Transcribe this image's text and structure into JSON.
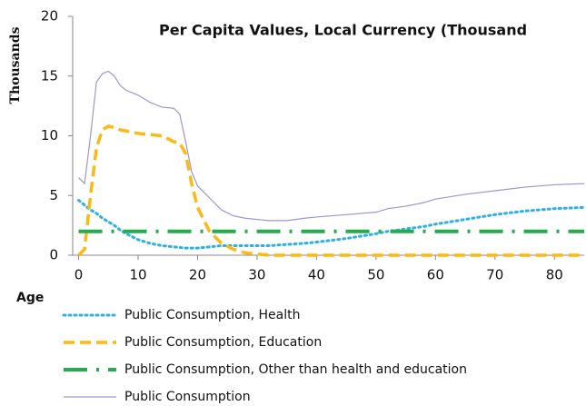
{
  "chart_data": {
    "type": "line",
    "title": "Per Capita Values, Local Currency (Thousand",
    "y_label": "Thousands",
    "x_label": "Age",
    "x": [
      0,
      1,
      2,
      3,
      4,
      5,
      6,
      7,
      8,
      10,
      12,
      14,
      16,
      17,
      18,
      19,
      20,
      22,
      24,
      26,
      28,
      30,
      32,
      35,
      38,
      40,
      45,
      50,
      52,
      55,
      58,
      60,
      65,
      70,
      75,
      80,
      85
    ],
    "xlim": [
      -1,
      85
    ],
    "xticks": [
      0,
      10,
      20,
      30,
      40,
      50,
      60,
      70,
      80
    ],
    "ylim": [
      0,
      20
    ],
    "yticks": [
      0,
      5,
      10,
      15,
      20
    ],
    "series": [
      {
        "name": "Public Consumption, Health",
        "color": "#2eb0e4",
        "style": "dotted",
        "values": [
          4.6,
          4.2,
          3.8,
          3.5,
          3.1,
          2.8,
          2.5,
          2.1,
          1.8,
          1.3,
          1.0,
          0.8,
          0.7,
          0.65,
          0.6,
          0.6,
          0.6,
          0.7,
          0.8,
          0.8,
          0.8,
          0.8,
          0.8,
          0.9,
          1.0,
          1.1,
          1.4,
          1.8,
          2.0,
          2.2,
          2.4,
          2.6,
          3.0,
          3.4,
          3.7,
          3.9,
          4.0
        ]
      },
      {
        "name": "Public Consumption, Education",
        "color": "#fdb913",
        "style": "dashed",
        "values": [
          0,
          0.5,
          5,
          9,
          10.5,
          10.8,
          10.7,
          10.5,
          10.4,
          10.2,
          10.1,
          10,
          9.5,
          9.4,
          8.5,
          6,
          4,
          2,
          1,
          0.5,
          0.2,
          0.1,
          0,
          0,
          0,
          0,
          0,
          0,
          0,
          0,
          0,
          0,
          0,
          0,
          0,
          0,
          0
        ]
      },
      {
        "name": "Public Consumption, Other than health and education",
        "color": "#1fae4b",
        "style": "dashdot",
        "values": [
          2,
          2,
          2,
          2,
          2,
          2,
          2,
          2,
          2,
          2,
          2,
          2,
          2,
          2,
          2,
          2,
          2,
          2,
          2,
          2,
          2,
          2,
          2,
          2,
          2,
          2,
          2,
          2,
          2,
          2,
          2,
          2,
          2,
          2,
          2,
          2,
          2
        ]
      },
      {
        "name": "Public Consumption",
        "color": "#a195cf",
        "style": "solid",
        "values": [
          6.5,
          6.0,
          10,
          14.5,
          15.2,
          15.4,
          15,
          14.2,
          13.8,
          13.4,
          12.8,
          12.4,
          12.3,
          11.8,
          9.5,
          7,
          5.8,
          4.8,
          3.8,
          3.3,
          3.1,
          3.0,
          2.9,
          2.9,
          3.1,
          3.2,
          3.4,
          3.6,
          3.9,
          4.1,
          4.4,
          4.7,
          5.1,
          5.4,
          5.7,
          5.9,
          6.0
        ]
      }
    ]
  }
}
